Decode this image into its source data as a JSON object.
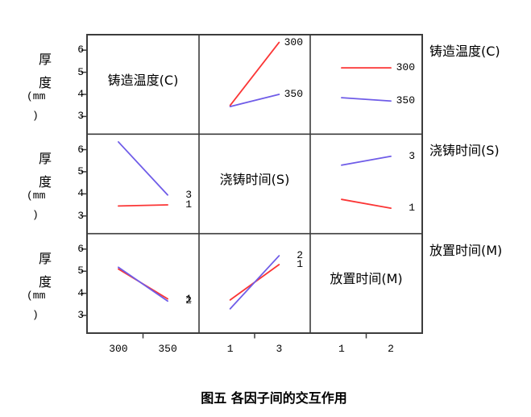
{
  "figure": {
    "caption": "图五  各因子间的交互作用"
  },
  "chart_data": {
    "type": "line",
    "subtype": "interaction-plot-matrix",
    "title": "",
    "response_axis": {
      "label": "厚度(mm)",
      "label_lines": [
        "厚",
        "度",
        "(mm",
        ")"
      ],
      "ticks": [
        6,
        5,
        4,
        3
      ],
      "range_per_cell": [
        2.2,
        6.7
      ]
    },
    "factors": [
      {
        "name": "铸造温度(C)",
        "levels": [
          "300",
          "350"
        ]
      },
      {
        "name": "浇铸时间(S)",
        "levels": [
          "1",
          "3"
        ]
      },
      {
        "name": "放置时间(M)",
        "levels": [
          "1",
          "2"
        ]
      }
    ],
    "colors": {
      "low": "#fb3535",
      "high": "#6f5ce8",
      "frame": "#3c3c3c",
      "text": "#000000"
    },
    "grid": "off",
    "legend_position": "line-end-labels",
    "panels": [
      {
        "row": 0,
        "col": 1,
        "series": [
          {
            "label": "300",
            "color_key": "low",
            "values": [
              3.5,
              6.35
            ]
          },
          {
            "label": "350",
            "color_key": "high",
            "values": [
              3.45,
              4.0
            ]
          }
        ]
      },
      {
        "row": 0,
        "col": 2,
        "series": [
          {
            "label": "300",
            "color_key": "low",
            "values": [
              5.2,
              5.2
            ]
          },
          {
            "label": "350",
            "color_key": "high",
            "values": [
              3.85,
              3.7
            ]
          }
        ]
      },
      {
        "row": 1,
        "col": 0,
        "series": [
          {
            "label": "1",
            "color_key": "low",
            "values": [
              3.45,
              3.5
            ]
          },
          {
            "label": "3",
            "color_key": "high",
            "values": [
              6.35,
              3.95
            ]
          }
        ]
      },
      {
        "row": 1,
        "col": 2,
        "series": [
          {
            "label": "1",
            "color_key": "low",
            "values": [
              3.75,
              3.35
            ]
          },
          {
            "label": "3",
            "color_key": "high",
            "values": [
              5.3,
              5.7
            ]
          }
        ]
      },
      {
        "row": 2,
        "col": 0,
        "series": [
          {
            "label": "1",
            "color_key": "low",
            "values": [
              5.1,
              3.75
            ]
          },
          {
            "label": "2",
            "color_key": "high",
            "values": [
              5.18,
              3.65
            ]
          }
        ]
      },
      {
        "row": 2,
        "col": 1,
        "series": [
          {
            "label": "1",
            "color_key": "low",
            "values": [
              3.7,
              5.3
            ]
          },
          {
            "label": "2",
            "color_key": "high",
            "values": [
              3.3,
              5.7
            ]
          }
        ]
      }
    ]
  }
}
